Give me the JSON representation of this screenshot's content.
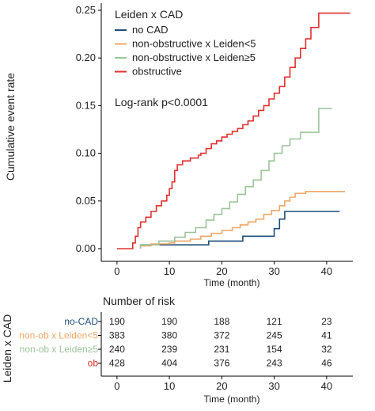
{
  "chart_data": [
    {
      "type": "line",
      "step": true,
      "legend_title": "Leiden x CAD",
      "legend_position": "top-left",
      "annotation": "Log-rank p<0.0001",
      "xlabel": "Time (month)",
      "ylabel": "Cumulative event rate",
      "xlim": [
        -3,
        45
      ],
      "ylim": [
        0,
        0.25
      ],
      "x_ticks": [
        0,
        10,
        20,
        30,
        40
      ],
      "y_ticks": [
        0.0,
        0.05,
        0.1,
        0.15,
        0.2,
        0.25
      ],
      "y_tick_labels": [
        "0.00",
        "0.05",
        "0.10",
        "0.15",
        "0.20",
        "0.25"
      ],
      "series": [
        {
          "name": "no CAD",
          "color": "#1f4e79",
          "points": [
            [
              4.5,
              0.0
            ],
            [
              4.5,
              0.004
            ],
            [
              17.5,
              0.004
            ],
            [
              17.5,
              0.008
            ],
            [
              24,
              0.008
            ],
            [
              24,
              0.013
            ],
            [
              30,
              0.013
            ],
            [
              30,
              0.021
            ],
            [
              31,
              0.021
            ],
            [
              31,
              0.031
            ],
            [
              32,
              0.031
            ],
            [
              32,
              0.039
            ],
            [
              42.5,
              0.039
            ]
          ]
        },
        {
          "name": "non-obstructive x Leiden<5",
          "color": "#f0a868",
          "points": [
            [
              4.5,
              0.0
            ],
            [
              4.5,
              0.003
            ],
            [
              6.5,
              0.003
            ],
            [
              6.5,
              0.005
            ],
            [
              10,
              0.005
            ],
            [
              10,
              0.006
            ],
            [
              11,
              0.006
            ],
            [
              11,
              0.008
            ],
            [
              14,
              0.008
            ],
            [
              14,
              0.01
            ],
            [
              16,
              0.01
            ],
            [
              16,
              0.013
            ],
            [
              18,
              0.013
            ],
            [
              18,
              0.016
            ],
            [
              20,
              0.016
            ],
            [
              20,
              0.019
            ],
            [
              22,
              0.019
            ],
            [
              22,
              0.022
            ],
            [
              23.5,
              0.022
            ],
            [
              23.5,
              0.025
            ],
            [
              25,
              0.025
            ],
            [
              25,
              0.028
            ],
            [
              26.5,
              0.028
            ],
            [
              26.5,
              0.031
            ],
            [
              28,
              0.031
            ],
            [
              28,
              0.036
            ],
            [
              29.5,
              0.036
            ],
            [
              29.5,
              0.04
            ],
            [
              31,
              0.04
            ],
            [
              31,
              0.045
            ],
            [
              32,
              0.045
            ],
            [
              32,
              0.05
            ],
            [
              33,
              0.05
            ],
            [
              33,
              0.054
            ],
            [
              34,
              0.054
            ],
            [
              34,
              0.058
            ],
            [
              36,
              0.058
            ],
            [
              36,
              0.06
            ],
            [
              43.5,
              0.06
            ]
          ]
        },
        {
          "name": "non-obstructive x Leiden≥5",
          "color": "#9cc49a",
          "points": [
            [
              4.5,
              0.0
            ],
            [
              4.5,
              0.004
            ],
            [
              8,
              0.004
            ],
            [
              8,
              0.008
            ],
            [
              11,
              0.008
            ],
            [
              11,
              0.012
            ],
            [
              13,
              0.012
            ],
            [
              13,
              0.017
            ],
            [
              15,
              0.017
            ],
            [
              15,
              0.022
            ],
            [
              17,
              0.022
            ],
            [
              17,
              0.03
            ],
            [
              18.5,
              0.03
            ],
            [
              18.5,
              0.036
            ],
            [
              20,
              0.036
            ],
            [
              20,
              0.042
            ],
            [
              21.5,
              0.042
            ],
            [
              21.5,
              0.049
            ],
            [
              23,
              0.049
            ],
            [
              23,
              0.057
            ],
            [
              24.5,
              0.057
            ],
            [
              24.5,
              0.065
            ],
            [
              26,
              0.065
            ],
            [
              26,
              0.072
            ],
            [
              27.5,
              0.072
            ],
            [
              27.5,
              0.082
            ],
            [
              29,
              0.082
            ],
            [
              29,
              0.092
            ],
            [
              30,
              0.092
            ],
            [
              30,
              0.1
            ],
            [
              31.5,
              0.1
            ],
            [
              31.5,
              0.108
            ],
            [
              33,
              0.108
            ],
            [
              33,
              0.115
            ],
            [
              35,
              0.115
            ],
            [
              35,
              0.122
            ],
            [
              38.5,
              0.122
            ],
            [
              38.5,
              0.147
            ],
            [
              41,
              0.147
            ]
          ]
        },
        {
          "name": "obstructive",
          "color": "#e03030",
          "points": [
            [
              0,
              0.0
            ],
            [
              3,
              0.0
            ],
            [
              3,
              0.006
            ],
            [
              3.5,
              0.006
            ],
            [
              3.5,
              0.013
            ],
            [
              4,
              0.013
            ],
            [
              4,
              0.022
            ],
            [
              4.5,
              0.022
            ],
            [
              4.5,
              0.028
            ],
            [
              5.5,
              0.028
            ],
            [
              5.5,
              0.033
            ],
            [
              6.5,
              0.033
            ],
            [
              6.5,
              0.039
            ],
            [
              7.5,
              0.039
            ],
            [
              7.5,
              0.045
            ],
            [
              8.5,
              0.045
            ],
            [
              8.5,
              0.05
            ],
            [
              9.5,
              0.05
            ],
            [
              9.5,
              0.056
            ],
            [
              10,
              0.056
            ],
            [
              10,
              0.063
            ],
            [
              10.5,
              0.063
            ],
            [
              10.5,
              0.07
            ],
            [
              11,
              0.07
            ],
            [
              11,
              0.082
            ],
            [
              11.5,
              0.082
            ],
            [
              11.5,
              0.088
            ],
            [
              12.5,
              0.088
            ],
            [
              12.5,
              0.092
            ],
            [
              14,
              0.092
            ],
            [
              14,
              0.095
            ],
            [
              15.5,
              0.095
            ],
            [
              15.5,
              0.098
            ],
            [
              16,
              0.098
            ],
            [
              16,
              0.1
            ],
            [
              17,
              0.1
            ],
            [
              17,
              0.105
            ],
            [
              18,
              0.105
            ],
            [
              18,
              0.11
            ],
            [
              19,
              0.11
            ],
            [
              19,
              0.113
            ],
            [
              20,
              0.113
            ],
            [
              20,
              0.117
            ],
            [
              21,
              0.117
            ],
            [
              21,
              0.12
            ],
            [
              22,
              0.12
            ],
            [
              22,
              0.123
            ],
            [
              23,
              0.123
            ],
            [
              23,
              0.126
            ],
            [
              24,
              0.126
            ],
            [
              24,
              0.13
            ],
            [
              25,
              0.13
            ],
            [
              25,
              0.134
            ],
            [
              26,
              0.134
            ],
            [
              26,
              0.139
            ],
            [
              27,
              0.139
            ],
            [
              27,
              0.145
            ],
            [
              28,
              0.145
            ],
            [
              28,
              0.15
            ],
            [
              29,
              0.15
            ],
            [
              29,
              0.157
            ],
            [
              30,
              0.157
            ],
            [
              30,
              0.163
            ],
            [
              31,
              0.163
            ],
            [
              31,
              0.17
            ],
            [
              32,
              0.17
            ],
            [
              32,
              0.18
            ],
            [
              33,
              0.18
            ],
            [
              33,
              0.19
            ],
            [
              34,
              0.19
            ],
            [
              34,
              0.2
            ],
            [
              35,
              0.2
            ],
            [
              35,
              0.21
            ],
            [
              36,
              0.21
            ],
            [
              36,
              0.22
            ],
            [
              37,
              0.22
            ],
            [
              37,
              0.232
            ],
            [
              38.5,
              0.232
            ],
            [
              38.5,
              0.247
            ],
            [
              44.5,
              0.247
            ]
          ]
        }
      ]
    },
    {
      "type": "table",
      "title": "Number of risk",
      "ylabel": "Leiden x CAD",
      "xlabel": "Time (month)",
      "x_ticks": [
        0,
        10,
        20,
        30,
        40
      ],
      "rows": [
        {
          "label": "no-CAD",
          "color": "#1f4e79",
          "values": [
            190,
            190,
            188,
            121,
            23
          ]
        },
        {
          "label": "non-ob x Leiden<5",
          "color": "#f0a868",
          "values": [
            383,
            380,
            372,
            245,
            41
          ]
        },
        {
          "label": "non-ob x Leiden≥5",
          "color": "#9cc49a",
          "values": [
            240,
            239,
            231,
            154,
            32
          ]
        },
        {
          "label": "ob",
          "color": "#e03030",
          "values": [
            428,
            404,
            376,
            243,
            46
          ]
        }
      ]
    }
  ]
}
